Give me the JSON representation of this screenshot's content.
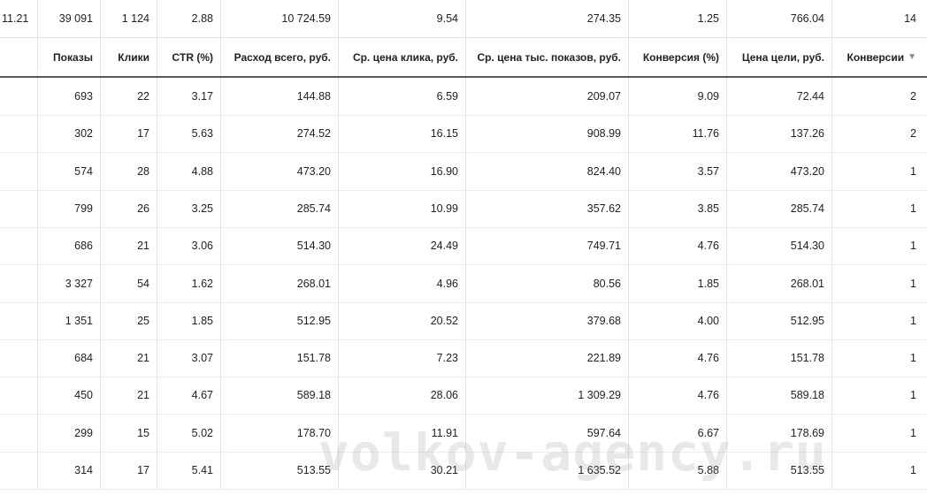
{
  "totals": [
    "11.21",
    "39 091",
    "1 124",
    "2.88",
    "10 724.59",
    "9.54",
    "274.35",
    "1.25",
    "766.04",
    "14"
  ],
  "headers": [
    "",
    "Показы",
    "Клики",
    "CTR (%)",
    "Расход всего, руб.",
    "Ср. цена клика, руб.",
    "Ср. цена тыс. показов, руб.",
    "Конверсия (%)",
    "Цена цели, руб.",
    "Конверсии"
  ],
  "sort_icon": "triangle-down-icon",
  "rows": [
    [
      "",
      "693",
      "22",
      "3.17",
      "144.88",
      "6.59",
      "209.07",
      "9.09",
      "72.44",
      "2"
    ],
    [
      "",
      "302",
      "17",
      "5.63",
      "274.52",
      "16.15",
      "908.99",
      "11.76",
      "137.26",
      "2"
    ],
    [
      "",
      "574",
      "28",
      "4.88",
      "473.20",
      "16.90",
      "824.40",
      "3.57",
      "473.20",
      "1"
    ],
    [
      "",
      "799",
      "26",
      "3.25",
      "285.74",
      "10.99",
      "357.62",
      "3.85",
      "285.74",
      "1"
    ],
    [
      "",
      "686",
      "21",
      "3.06",
      "514.30",
      "24.49",
      "749.71",
      "4.76",
      "514.30",
      "1"
    ],
    [
      "",
      "3 327",
      "54",
      "1.62",
      "268.01",
      "4.96",
      "80.56",
      "1.85",
      "268.01",
      "1"
    ],
    [
      "",
      "1 351",
      "25",
      "1.85",
      "512.95",
      "20.52",
      "379.68",
      "4.00",
      "512.95",
      "1"
    ],
    [
      "",
      "684",
      "21",
      "3.07",
      "151.78",
      "7.23",
      "221.89",
      "4.76",
      "151.78",
      "1"
    ],
    [
      "",
      "450",
      "21",
      "4.67",
      "589.18",
      "28.06",
      "1 309.29",
      "4.76",
      "589.18",
      "1"
    ],
    [
      "",
      "299",
      "15",
      "5.02",
      "178.70",
      "11.91",
      "597.64",
      "6.67",
      "178.69",
      "1"
    ],
    [
      "",
      "314",
      "17",
      "5.41",
      "513.55",
      "30.21",
      "1 635.52",
      "5.88",
      "513.55",
      "1"
    ]
  ],
  "watermark": "volkov-agency.ru"
}
